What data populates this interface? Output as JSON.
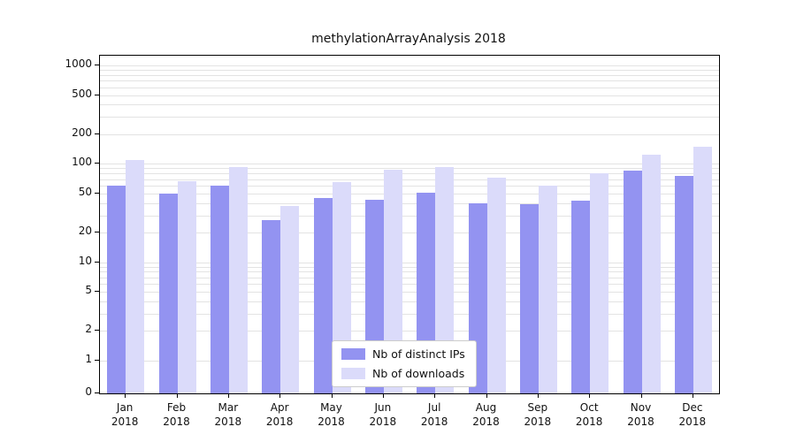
{
  "chart_data": {
    "type": "bar",
    "title": "methylationArrayAnalysis 2018",
    "categories": [
      "Jan",
      "Feb",
      "Mar",
      "Apr",
      "May",
      "Jun",
      "Jul",
      "Aug",
      "Sep",
      "Oct",
      "Nov",
      "Dec"
    ],
    "year": "2018",
    "series": [
      {
        "name": "Nb of distinct IPs",
        "color": "#9393f1",
        "values": [
          60,
          50,
          60,
          27,
          45,
          43,
          51,
          40,
          39,
          42,
          85,
          75
        ]
      },
      {
        "name": "Nb of downloads",
        "color": "#dbdbfa",
        "values": [
          110,
          67,
          92,
          37,
          65,
          88,
          93,
          72,
          60,
          80,
          125,
          150
        ]
      }
    ],
    "yscale": "log",
    "yticks": [
      0,
      1,
      2,
      5,
      10,
      20,
      50,
      100,
      200,
      500,
      1000
    ],
    "ylim": [
      0,
      1000
    ],
    "grid": true,
    "legend_position": "bottom-center"
  },
  "colors": {
    "grid": "#e3e3e3",
    "axis": "#000000",
    "background": "#ffffff"
  }
}
